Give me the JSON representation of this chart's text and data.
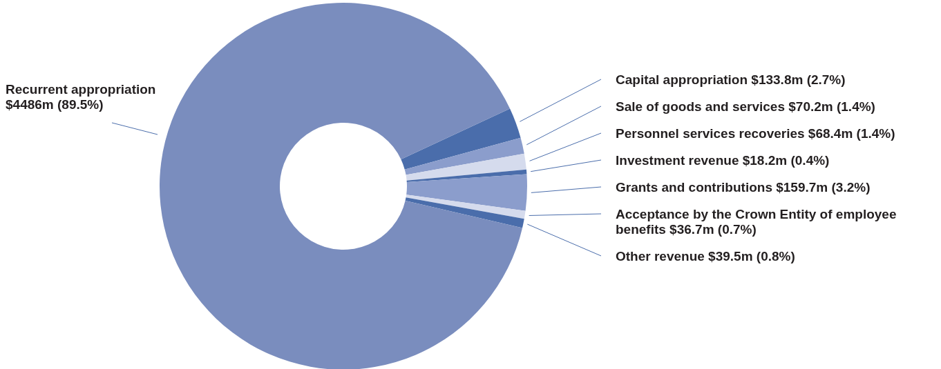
{
  "chart_data": {
    "type": "donut",
    "categories": [
      "Capital appropriation",
      "Sale of goods and services",
      "Personnel services recoveries",
      "Investment revenue",
      "Grants and contributions",
      "Acceptance by the Crown Entity of employee benefits",
      "Other revenue",
      "Recurrent appropriation"
    ],
    "values": [
      2.7,
      1.4,
      1.4,
      0.4,
      3.2,
      0.7,
      0.8,
      89.5
    ],
    "value_labels": [
      "$133.8m (2.7%)",
      "$70.2m (1.4%)",
      "$68.4m (1.4%)",
      "$18.2m (0.4%)",
      "$159.7m (3.2%)",
      "$36.7m (0.7%)",
      "$39.5m (0.8%)",
      "$4486m (89.5%)"
    ],
    "colors": [
      "#4a6dab",
      "#8b9dcc",
      "#d5dbed",
      "#4a6dab",
      "#8b9dcc",
      "#d5dbed",
      "#4a6dab",
      "#7a8dbe"
    ]
  }
}
